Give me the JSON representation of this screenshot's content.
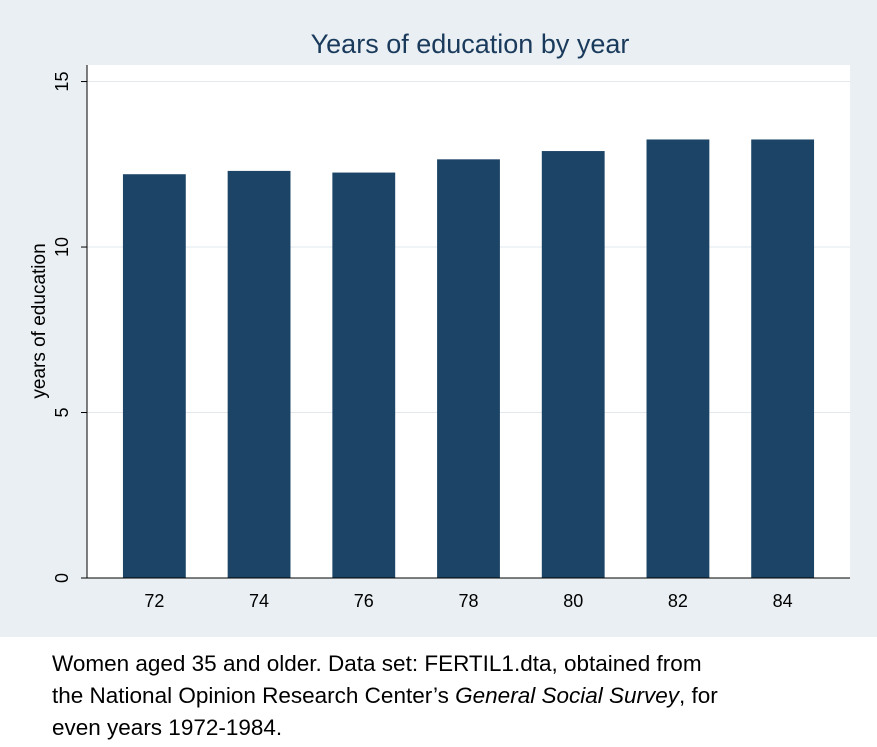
{
  "chart_data": {
    "type": "bar",
    "title": "Years of education by year",
    "xlabel": "",
    "ylabel": "years of education",
    "categories": [
      "72",
      "74",
      "76",
      "78",
      "80",
      "82",
      "84"
    ],
    "values": [
      12.2,
      12.3,
      12.25,
      12.65,
      12.9,
      13.25,
      13.25
    ],
    "ylim": [
      0,
      15.5
    ],
    "yticks": [
      "0",
      "5",
      "10",
      "15"
    ],
    "grid": true,
    "legend": "none",
    "colors": {
      "bar": "#1b4466",
      "background": "#e9eff2",
      "plot_background": "#ffffff",
      "grid": "#e3e8ec",
      "title": "#1a3a5c"
    }
  },
  "caption": {
    "line1": "Women aged 35 and older. Data set: FERTIL1.dta, obtained from",
    "line2_pre": "the National Opinion Research Center’s ",
    "line2_em": "General Social Survey",
    "line2_post": ", for",
    "line3": "even years 1972-1984."
  }
}
